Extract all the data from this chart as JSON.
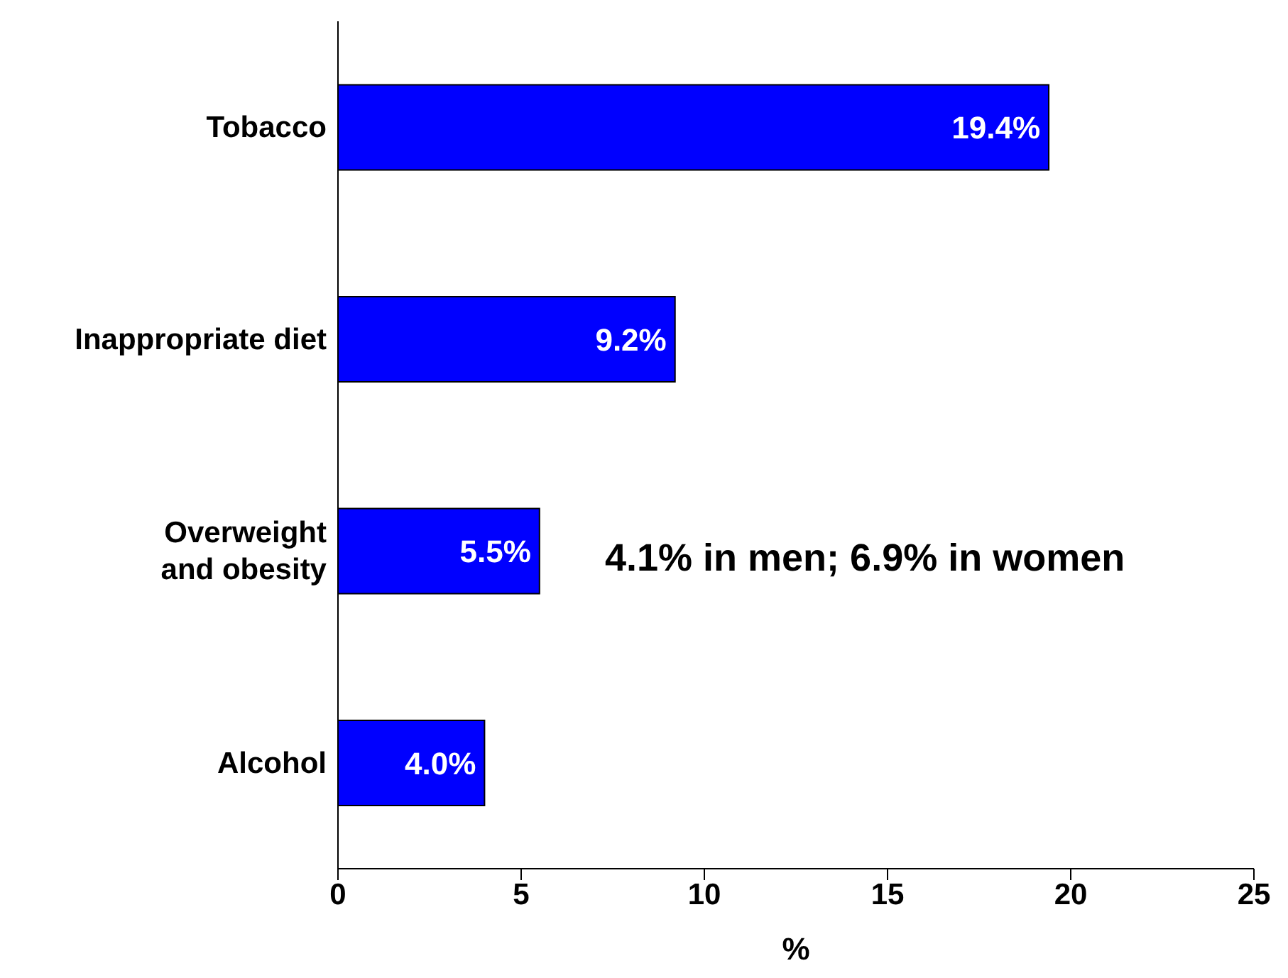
{
  "chart_data": {
    "type": "bar",
    "orientation": "horizontal",
    "xlabel": "%",
    "categories": [
      "Tobacco",
      "Inappropriate diet",
      "Overweight and obesity",
      "Alcohol"
    ],
    "values": [
      19.4,
      9.2,
      5.5,
      4.0
    ],
    "value_labels": [
      "19.4%",
      "9.2%",
      "5.5%",
      "4.0%"
    ],
    "color": "#0000ff",
    "xlim": [
      0,
      25
    ],
    "xticks": [
      0,
      5,
      10,
      15,
      20,
      25
    ],
    "grid": false,
    "annotations": [
      "4.1% in men; 6.9% in women"
    ]
  }
}
